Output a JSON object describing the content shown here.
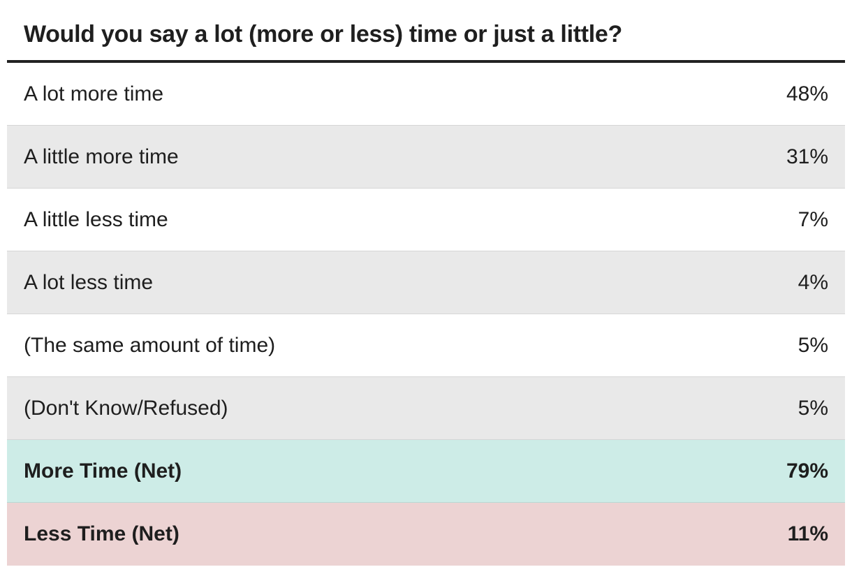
{
  "chart_data": {
    "type": "table",
    "title": "Would you say a lot (more or less) time or just a little?",
    "rows": [
      {
        "label": "A lot more time",
        "value": "48%",
        "style": "plain"
      },
      {
        "label": "A little more time",
        "value": "31%",
        "style": "plain"
      },
      {
        "label": "A little less time",
        "value": "7%",
        "style": "plain"
      },
      {
        "label": "A lot less time",
        "value": "4%",
        "style": "plain"
      },
      {
        "label": "(The same amount of time)",
        "value": "5%",
        "style": "plain"
      },
      {
        "label": "(Don't Know/Refused)",
        "value": "5%",
        "style": "plain"
      },
      {
        "label": "More Time (Net)",
        "value": "79%",
        "style": "net-more"
      },
      {
        "label": "Less Time (Net)",
        "value": "11%",
        "style": "net-less"
      }
    ]
  },
  "colors": {
    "row_alt": "#e9e9e9",
    "net_more_bg": "#cdece7",
    "net_less_bg": "#ecd3d3",
    "header_rule": "#222222"
  }
}
